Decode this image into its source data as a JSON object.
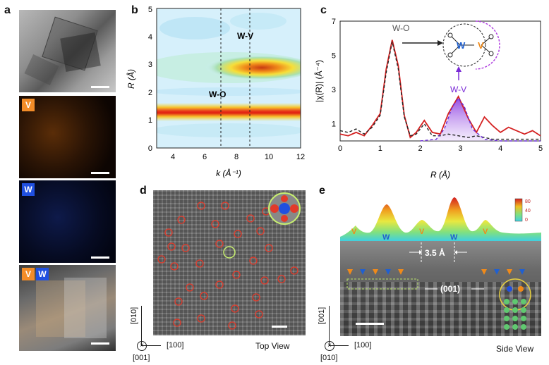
{
  "panels": {
    "a": {
      "letter": "a",
      "v_badge": "V",
      "w_badge": "W",
      "overlay_v": "V",
      "overlay_w": "W",
      "colors": {
        "v": "#f28c28",
        "w": "#2050e0"
      }
    },
    "b": {
      "letter": "b",
      "ylabel": "R (Å)",
      "xlabel": "k (Å⁻¹)",
      "annot_wv": "W-V",
      "annot_wo": "W-O",
      "xticks": [
        "4",
        "6",
        "8",
        "10",
        "12"
      ],
      "yticks": [
        "0",
        "1",
        "2",
        "3",
        "4",
        "5"
      ]
    },
    "c": {
      "letter": "c",
      "ylabel": "|χ(R)| (Å⁻⁴)",
      "xlabel": "R (Å)",
      "annot_wo": "W-O",
      "annot_wv": "W-V",
      "xticks": [
        "0",
        "1",
        "2",
        "3",
        "4",
        "5"
      ],
      "yticks": [
        "1",
        "3",
        "5",
        "7"
      ],
      "inset_w": "W",
      "inset_v": "V"
    },
    "d": {
      "letter": "d",
      "view_label": "Top View",
      "axis_vertical": "[010]",
      "axis_horizontal": "[100]",
      "axis_out": "[001]"
    },
    "e": {
      "letter": "e",
      "view_label": "Side View",
      "axis_vertical": "[001]",
      "axis_horizontal": "[100]",
      "axis_out": "[010]",
      "spacing_label": "3.5 Å",
      "plane_label": "(001)",
      "profile_labels": [
        "V",
        "W",
        "V",
        "W",
        "V"
      ],
      "colorbar_ticks": [
        "80",
        "40",
        "0"
      ]
    }
  },
  "chart_data": [
    {
      "type": "heatmap",
      "panel": "b",
      "xlabel": "k (Å⁻¹)",
      "ylabel": "R (Å)",
      "xlim": [
        3,
        12
      ],
      "ylim": [
        0,
        5
      ],
      "features": [
        {
          "label": "W-O",
          "k": 6.8,
          "R": 1.2
        },
        {
          "label": "W-V",
          "k": 8.6,
          "R": 2.9
        }
      ],
      "dashed_lines_k": [
        7,
        9
      ]
    },
    {
      "type": "line",
      "panel": "c",
      "xlabel": "R (Å)",
      "ylabel": "|χ(R)| (Å⁻⁴)",
      "xlim": [
        0,
        5
      ],
      "ylim": [
        0,
        7
      ],
      "series": [
        {
          "name": "",
          "color": "#d42020",
          "style": "solid",
          "x": [
            0,
            0.2,
            0.4,
            0.6,
            0.8,
            1.0,
            1.15,
            1.3,
            1.45,
            1.6,
            1.75,
            1.9,
            2.1,
            2.3,
            2.5,
            2.7,
            2.95,
            3.2,
            3.4,
            3.6,
            3.8,
            4.0,
            4.2,
            4.4,
            4.6,
            4.8,
            5.0
          ],
          "y": [
            0.4,
            0.3,
            0.5,
            0.3,
            0.9,
            1.6,
            4.2,
            5.9,
            4.4,
            1.5,
            0.2,
            0.5,
            1.2,
            0.5,
            0.4,
            1.6,
            2.6,
            1.3,
            0.5,
            1.4,
            0.9,
            0.5,
            0.8,
            0.6,
            0.4,
            0.6,
            0.3
          ]
        },
        {
          "name": "",
          "color": "#222222",
          "style": "dashed",
          "x": [
            0,
            0.2,
            0.4,
            0.6,
            0.8,
            1.0,
            1.15,
            1.3,
            1.45,
            1.6,
            1.75,
            1.9,
            2.1,
            2.3,
            2.5,
            2.7,
            2.95,
            3.2,
            3.4,
            3.6,
            3.8,
            4.0,
            4.2,
            4.4,
            4.6,
            4.8,
            5.0
          ],
          "y": [
            0.6,
            0.5,
            0.7,
            0.4,
            0.8,
            1.5,
            4.0,
            5.8,
            4.2,
            1.4,
            0.3,
            0.4,
            1.0,
            0.3,
            0.3,
            0.4,
            0.3,
            0.2,
            0.3,
            0.2,
            0.1,
            0.1,
            0.1,
            0.1,
            0.1,
            0.1,
            0.1
          ]
        },
        {
          "name": "",
          "color": "#6a2ad6",
          "style": "dashed",
          "x": [
            2.0,
            2.4,
            2.6,
            2.8,
            2.95,
            3.1,
            3.3,
            3.6,
            4.0,
            5.0
          ],
          "y": [
            0.0,
            0.1,
            0.7,
            2.0,
            2.5,
            2.0,
            0.7,
            0.1,
            0.0,
            0.0
          ]
        }
      ],
      "annotations": [
        {
          "label": "W-O",
          "x": 1.3,
          "y": 6.1
        },
        {
          "label": "W-V",
          "x": 2.95,
          "y": 2.0
        }
      ]
    }
  ]
}
